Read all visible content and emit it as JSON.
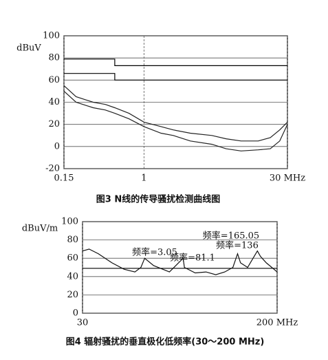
{
  "chart_data": [
    {
      "type": "line",
      "caption": "图3 N线的传导骚扰检测曲线图",
      "ylabel": "dBuV",
      "xscale": "log",
      "grid": true,
      "xlim": [
        0.15,
        30
      ],
      "xticks": [
        0.15,
        1,
        {
          "value": 30,
          "label": "30 MHz"
        }
      ],
      "ylim": [
        -20,
        100
      ],
      "yticks": [
        -20,
        0,
        20,
        40,
        60,
        80,
        100
      ],
      "series": [
        {
          "color": "#000000",
          "x": [
            0.15,
            0.5,
            0.5,
            30
          ],
          "values": [
            79,
            79,
            73,
            73
          ]
        },
        {
          "color": "#000000",
          "x": [
            0.15,
            0.5,
            0.5,
            30
          ],
          "values": [
            66,
            66,
            60,
            60
          ]
        },
        {
          "color": "#222222",
          "x": [
            0.15,
            0.2,
            0.3,
            0.4,
            0.5,
            0.7,
            1,
            1.5,
            2,
            3,
            5,
            7,
            10,
            15,
            20,
            25,
            30
          ],
          "values": [
            55,
            45,
            40,
            38,
            35,
            30,
            22,
            18,
            15,
            12,
            10,
            7,
            5,
            5,
            8,
            15,
            22
          ]
        },
        {
          "color": "#222222",
          "x": [
            0.15,
            0.2,
            0.3,
            0.4,
            0.5,
            0.7,
            1,
            1.5,
            2,
            3,
            5,
            7,
            10,
            15,
            20,
            25,
            30
          ],
          "values": [
            50,
            40,
            35,
            33,
            30,
            25,
            18,
            12,
            10,
            5,
            2,
            -2,
            -4,
            -3,
            -2,
            5,
            20
          ]
        }
      ]
    },
    {
      "type": "line",
      "caption": "图4 辐射骚扰的垂直极化低频率(30～200 MHz)",
      "ylabel": "dBuV/m",
      "xscale": "log",
      "grid": true,
      "xlim": [
        30,
        200
      ],
      "xticks": [
        30,
        {
          "value": 200,
          "label": "200 MHz"
        }
      ],
      "ylim": [
        0,
        100
      ],
      "yticks": [
        0,
        20,
        40,
        60,
        80,
        100
      ],
      "annotations": [
        "频率=3.05",
        "频率=81.1",
        "频率=165.05",
        "频率=136"
      ],
      "series": [
        {
          "color": "#000000",
          "x": [
            30,
            200
          ],
          "values": [
            49,
            49
          ]
        },
        {
          "color": "#111111",
          "x": [
            30,
            32,
            35,
            40,
            45,
            50,
            53,
            55,
            60,
            70,
            80,
            81,
            90,
            100,
            110,
            120,
            130,
            136,
            140,
            150,
            165,
            170,
            180,
            190,
            200
          ],
          "values": [
            68,
            70,
            65,
            55,
            48,
            45,
            50,
            60,
            52,
            45,
            60,
            50,
            44,
            45,
            42,
            45,
            50,
            65,
            55,
            50,
            68,
            62,
            55,
            50,
            45
          ]
        }
      ]
    }
  ]
}
